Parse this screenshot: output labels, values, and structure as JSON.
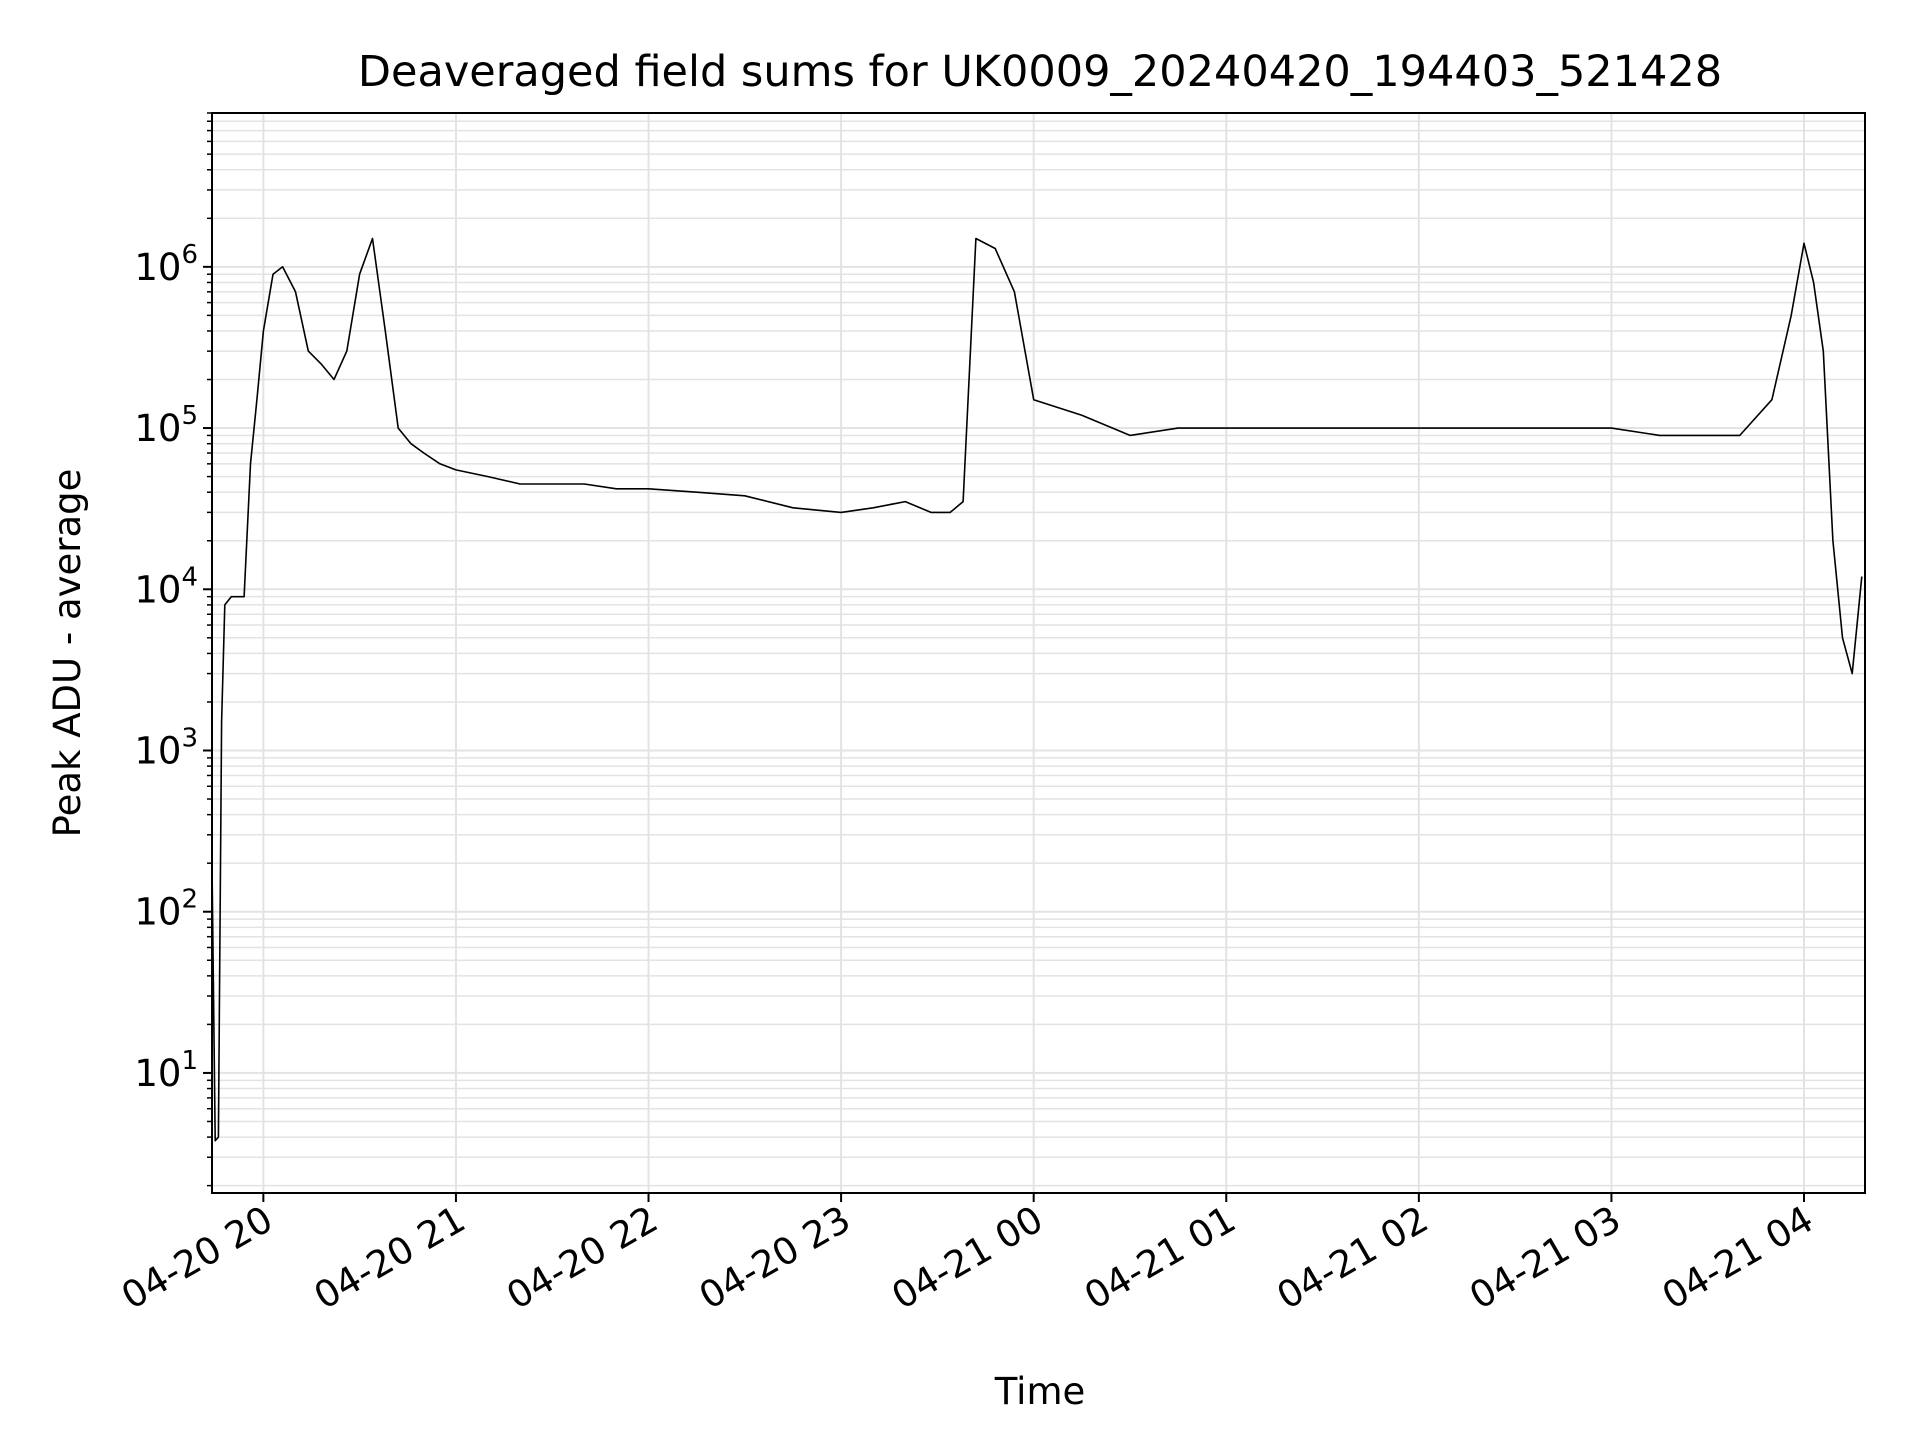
{
  "chart_data": {
    "type": "line",
    "title": "Deaveraged field sums for UK0009_20240420_194403_521428",
    "xlabel": "Time",
    "ylabel": "Peak ADU - average",
    "yscale": "log",
    "grid": true,
    "line_color": "#000000",
    "grid_color": "#e3e3e3",
    "xlim": [
      "2024-04-20 19:44",
      "2024-04-21 04:19"
    ],
    "ylim": [
      1.8,
      9000000
    ],
    "x_ticks": [
      "04-20 20",
      "04-20 21",
      "04-20 22",
      "04-20 23",
      "04-21 00",
      "04-21 01",
      "04-21 02",
      "04-21 03",
      "04-21 04"
    ],
    "x_tick_times": [
      "2024-04-20 20:00",
      "2024-04-20 21:00",
      "2024-04-20 22:00",
      "2024-04-20 23:00",
      "2024-04-21 00:00",
      "2024-04-21 01:00",
      "2024-04-21 02:00",
      "2024-04-21 03:00",
      "2024-04-21 04:00"
    ],
    "y_ticks": [
      {
        "value": 10,
        "base": "10",
        "exp": "1"
      },
      {
        "value": 100,
        "base": "10",
        "exp": "2"
      },
      {
        "value": 1000,
        "base": "10",
        "exp": "3"
      },
      {
        "value": 10000,
        "base": "10",
        "exp": "4"
      },
      {
        "value": 100000,
        "base": "10",
        "exp": "5"
      },
      {
        "value": 1000000,
        "base": "10",
        "exp": "6"
      }
    ],
    "series": [
      {
        "x": [
          "2024-04-20 19:44",
          "2024-04-20 19:45",
          "2024-04-20 19:46",
          "2024-04-20 19:47",
          "2024-04-20 19:48",
          "2024-04-20 19:50",
          "2024-04-20 19:52",
          "2024-04-20 19:54",
          "2024-04-20 19:56",
          "2024-04-20 19:58",
          "2024-04-20 20:00",
          "2024-04-20 20:03",
          "2024-04-20 20:06",
          "2024-04-20 20:10",
          "2024-04-20 20:14",
          "2024-04-20 20:18",
          "2024-04-20 20:22",
          "2024-04-20 20:26",
          "2024-04-20 20:30",
          "2024-04-20 20:34",
          "2024-04-20 20:38",
          "2024-04-20 20:42",
          "2024-04-20 20:46",
          "2024-04-20 20:50",
          "2024-04-20 20:55",
          "2024-04-20 21:00",
          "2024-04-20 21:10",
          "2024-04-20 21:20",
          "2024-04-20 21:30",
          "2024-04-20 21:40",
          "2024-04-20 21:50",
          "2024-04-20 22:00",
          "2024-04-20 22:15",
          "2024-04-20 22:30",
          "2024-04-20 22:45",
          "2024-04-20 23:00",
          "2024-04-20 23:10",
          "2024-04-20 23:20",
          "2024-04-20 23:28",
          "2024-04-20 23:34",
          "2024-04-20 23:38",
          "2024-04-20 23:42",
          "2024-04-20 23:48",
          "2024-04-20 23:54",
          "2024-04-21 00:00",
          "2024-04-21 00:15",
          "2024-04-21 00:30",
          "2024-04-21 00:45",
          "2024-04-21 01:00",
          "2024-04-21 01:15",
          "2024-04-21 01:30",
          "2024-04-21 01:45",
          "2024-04-21 02:00",
          "2024-04-21 02:15",
          "2024-04-21 02:30",
          "2024-04-21 02:45",
          "2024-04-21 03:00",
          "2024-04-21 03:15",
          "2024-04-21 03:30",
          "2024-04-21 03:40",
          "2024-04-21 03:50",
          "2024-04-21 03:56",
          "2024-04-21 04:00",
          "2024-04-21 04:03",
          "2024-04-21 04:06",
          "2024-04-21 04:09",
          "2024-04-21 04:12",
          "2024-04-21 04:15",
          "2024-04-21 04:18"
        ],
        "y": [
          200,
          3.8,
          4,
          1500,
          8000,
          9000,
          9000,
          9000,
          60000,
          150000,
          400000,
          900000,
          1000000,
          700000,
          300000,
          250000,
          200000,
          300000,
          900000,
          1500000,
          400000,
          100000,
          80000,
          70000,
          60000,
          55000,
          50000,
          45000,
          45000,
          45000,
          42000,
          42000,
          40000,
          38000,
          32000,
          30000,
          32000,
          35000,
          30000,
          30000,
          35000,
          1500000,
          1300000,
          700000,
          150000,
          120000,
          90000,
          100000,
          100000,
          100000,
          100000,
          100000,
          100000,
          100000,
          100000,
          100000,
          100000,
          90000,
          90000,
          90000,
          150000,
          500000,
          1400000,
          800000,
          300000,
          20000,
          5000,
          3000,
          12000
        ]
      }
    ]
  }
}
